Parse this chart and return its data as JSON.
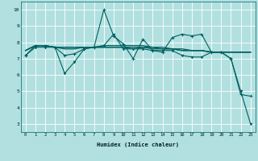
{
  "xlabel": "Humidex (Indice chaleur)",
  "background_color": "#b2e0e0",
  "grid_color": "#ffffff",
  "line_color": "#006060",
  "x_values": [
    0,
    1,
    2,
    3,
    4,
    5,
    6,
    7,
    8,
    9,
    10,
    11,
    12,
    13,
    14,
    15,
    16,
    17,
    18,
    19,
    20,
    21,
    22,
    23
  ],
  "line1_y": [
    7.2,
    7.8,
    7.8,
    7.7,
    7.2,
    7.3,
    7.6,
    7.7,
    10.0,
    8.4,
    7.9,
    7.0,
    8.2,
    7.5,
    7.4,
    8.3,
    8.5,
    8.4,
    8.5,
    7.4,
    7.4,
    7.0,
    4.8,
    4.7
  ],
  "line2_y": [
    7.2,
    7.7,
    7.7,
    7.7,
    6.1,
    6.8,
    7.6,
    7.7,
    7.8,
    8.5,
    7.6,
    7.6,
    7.6,
    7.5,
    7.5,
    7.5,
    7.2,
    7.1,
    7.1,
    7.4,
    7.4,
    7.0,
    5.0,
    3.0
  ],
  "line3_y": [
    7.5,
    7.8,
    7.8,
    7.7,
    7.7,
    7.7,
    7.7,
    7.7,
    7.7,
    7.7,
    7.7,
    7.7,
    7.7,
    7.7,
    7.6,
    7.6,
    7.5,
    7.5,
    7.5,
    7.4,
    7.4,
    7.4,
    7.4,
    7.4
  ],
  "line4_y": [
    7.5,
    7.8,
    7.8,
    7.7,
    7.7,
    7.7,
    7.7,
    7.7,
    7.8,
    7.8,
    7.8,
    7.8,
    7.8,
    7.7,
    7.7,
    7.6,
    7.6,
    7.5,
    7.5,
    7.4,
    7.4,
    7.4,
    7.4,
    7.4
  ],
  "line5_y": [
    7.5,
    7.8,
    7.8,
    7.7,
    7.6,
    7.6,
    7.7,
    7.7,
    7.7,
    7.7,
    7.7,
    7.6,
    7.7,
    7.6,
    7.6,
    7.6,
    7.5,
    7.5,
    7.5,
    7.4,
    7.4,
    7.4,
    7.4,
    7.4
  ],
  "ylim": [
    2.5,
    10.5
  ],
  "yticks": [
    3,
    4,
    5,
    6,
    7,
    8,
    9,
    10
  ],
  "xlim": [
    -0.5,
    23.5
  ],
  "figsize": [
    3.2,
    2.0
  ],
  "dpi": 100
}
